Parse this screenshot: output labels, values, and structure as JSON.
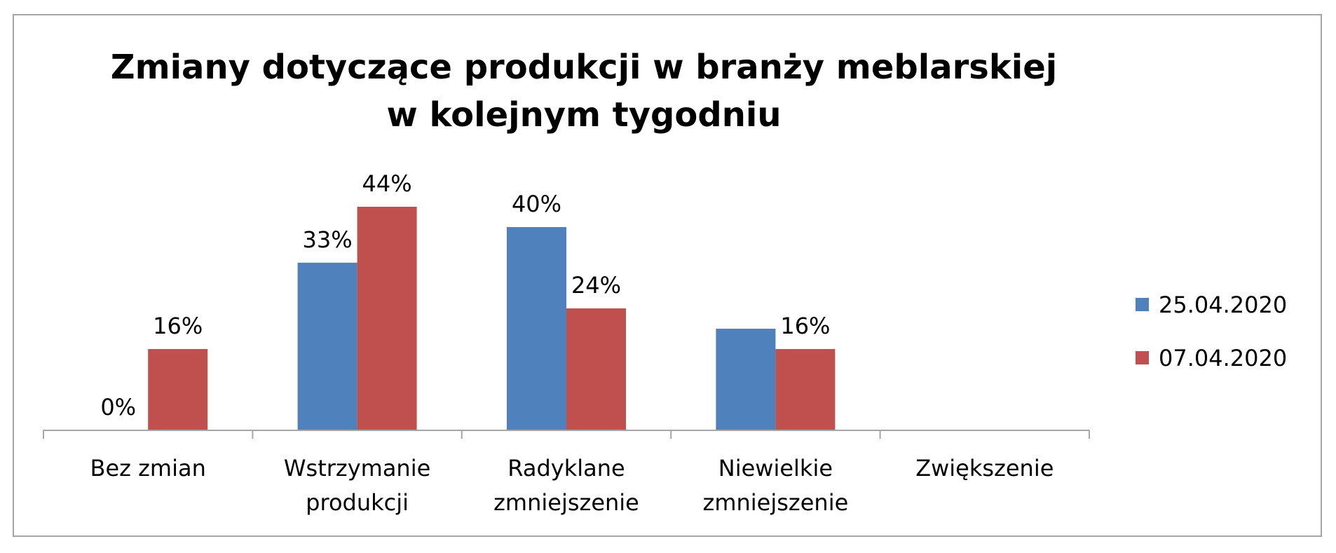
{
  "chart_data": {
    "type": "bar",
    "title_lines": [
      "Zmiany dotyczące produkcji w branży meblarskiej",
      "w kolejnym tygodniu"
    ],
    "categories": [
      [
        "Bez zmian"
      ],
      [
        "Wstrzymanie",
        "produkcji"
      ],
      [
        "Radyklane",
        "zmniejszenie"
      ],
      [
        "Niewielkie",
        "zmniejszenie"
      ],
      [
        "Zwiększenie"
      ]
    ],
    "series": [
      {
        "name": "25.04.2020",
        "color": "#4f81bd",
        "values": [
          0,
          33,
          40,
          20,
          null
        ],
        "labels": [
          "0%",
          "33%",
          "40%",
          null,
          null
        ]
      },
      {
        "name": "07.04.2020",
        "color": "#c0504d",
        "values": [
          16,
          44,
          24,
          16,
          null
        ],
        "labels": [
          "16%",
          "44%",
          "24%",
          "16%",
          null
        ]
      }
    ],
    "ylim": [
      0,
      50
    ],
    "axis_color": "#a6a6a6",
    "grid": false,
    "legend_position": "right"
  }
}
